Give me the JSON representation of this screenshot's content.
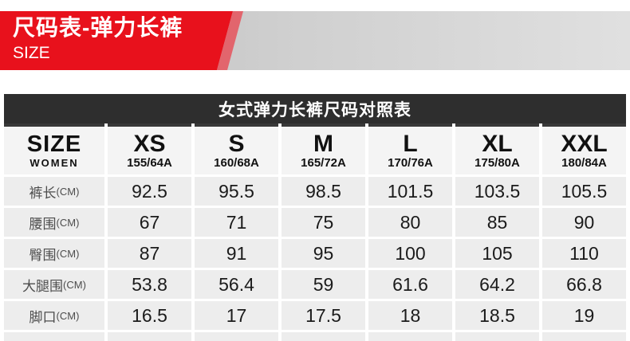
{
  "banner": {
    "title": "尺码表-弹力长裤",
    "subtitle": "SIZE",
    "red_color": "#e8111c",
    "stripe_color": "#e2656d",
    "gray_color": "#cfcfcf"
  },
  "table_title": "女式弹力长裤尺码对照表",
  "size_table": {
    "corner": {
      "line1": "SIZE",
      "line2": "WOMEN"
    },
    "columns": [
      {
        "size": "XS",
        "spec": "155/64A"
      },
      {
        "size": "S",
        "spec": "160/68A"
      },
      {
        "size": "M",
        "spec": "165/72A"
      },
      {
        "size": "L",
        "spec": "170/76A"
      },
      {
        "size": "XL",
        "spec": "175/80A"
      },
      {
        "size": "XXL",
        "spec": "180/84A"
      }
    ],
    "rows": [
      {
        "label": "裤长",
        "unit": "(CM)",
        "values": [
          "92.5",
          "95.5",
          "98.5",
          "101.5",
          "103.5",
          "105.5"
        ]
      },
      {
        "label": "腰围",
        "unit": "(CM)",
        "values": [
          "67",
          "71",
          "75",
          "80",
          "85",
          "90"
        ]
      },
      {
        "label": "臀围",
        "unit": "(CM)",
        "values": [
          "87",
          "91",
          "95",
          "100",
          "105",
          "110"
        ]
      },
      {
        "label": "大腿围",
        "unit": "(CM)",
        "values": [
          "53.8",
          "56.4",
          "59",
          "61.6",
          "64.2",
          "66.8"
        ]
      },
      {
        "label": "脚口",
        "unit": "(CM)",
        "values": [
          "16.5",
          "17",
          "17.5",
          "18",
          "18.5",
          "19"
        ]
      }
    ]
  }
}
